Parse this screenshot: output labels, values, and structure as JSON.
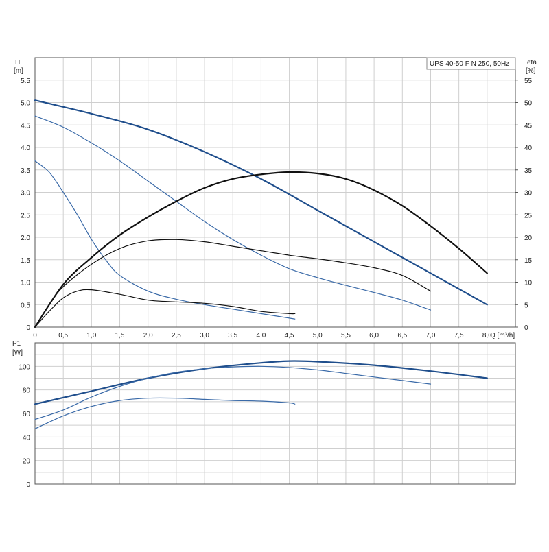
{
  "chart_data": [
    {
      "type": "line",
      "panel": "head-efficiency",
      "title": "UPS 40-50 F N 250, 50Hz",
      "ylabel": "H",
      "yunit": "[m]",
      "y2label": "eta",
      "y2unit": "[%]",
      "xlabel": "Q [m³/h]",
      "xlim": [
        0,
        8.5
      ],
      "ylim": [
        0,
        6.0
      ],
      "y2lim": [
        0,
        60
      ],
      "xticks": [
        "0",
        "0,5",
        "1,0",
        "1,5",
        "2,0",
        "2,5",
        "3,0",
        "3,5",
        "4,0",
        "4,5",
        "5,0",
        "5,5",
        "6,0",
        "6,5",
        "7,0",
        "7,5",
        "8,0"
      ],
      "yticks": [
        "0",
        "0.5",
        "1.0",
        "1.5",
        "2.0",
        "2.5",
        "3.0",
        "3.5",
        "4.0",
        "4.5",
        "5.0",
        "5.5"
      ],
      "y2ticks": [
        "0",
        "5",
        "10",
        "15",
        "20",
        "25",
        "30",
        "35",
        "40",
        "45",
        "50",
        "55"
      ],
      "grid": true,
      "head_series": [
        {
          "color": "#1f4e8c",
          "width": 2.2,
          "x": [
            0,
            1,
            2,
            3,
            4,
            5,
            6,
            7,
            8
          ],
          "y": [
            5.05,
            4.75,
            4.4,
            3.9,
            3.3,
            2.6,
            1.9,
            1.2,
            0.5
          ]
        },
        {
          "color": "#3a6aa8",
          "width": 1.2,
          "x": [
            0,
            0.5,
            1,
            1.5,
            2,
            2.5,
            3,
            3.5,
            4,
            4.5,
            5,
            5.5,
            6,
            6.5,
            7
          ],
          "y": [
            4.7,
            4.45,
            4.1,
            3.7,
            3.25,
            2.8,
            2.35,
            1.95,
            1.6,
            1.3,
            1.1,
            0.93,
            0.77,
            0.6,
            0.38
          ]
        },
        {
          "color": "#3a6aa8",
          "width": 1.2,
          "x": [
            0,
            0.25,
            0.5,
            0.75,
            1,
            1.25,
            1.5,
            2,
            2.5,
            3,
            3.5,
            4,
            4.5,
            4.6
          ],
          "y": [
            3.7,
            3.45,
            3.0,
            2.5,
            1.95,
            1.5,
            1.15,
            0.8,
            0.62,
            0.5,
            0.4,
            0.3,
            0.2,
            0.18
          ]
        }
      ],
      "efficiency_series": [
        {
          "color": "#111111",
          "width": 2.2,
          "x": [
            0,
            0.5,
            1,
            1.5,
            2,
            2.5,
            3,
            3.5,
            4,
            4.5,
            5,
            5.5,
            6,
            6.5,
            7,
            7.5,
            8
          ],
          "y": [
            0,
            9.5,
            15.5,
            20.5,
            24.5,
            28,
            31,
            33,
            34,
            34.5,
            34.2,
            33,
            30.5,
            27,
            22.5,
            17.5,
            12
          ]
        },
        {
          "color": "#111111",
          "width": 1.2,
          "x": [
            0,
            0.25,
            0.5,
            1,
            1.5,
            2,
            2.5,
            3,
            3.5,
            4,
            4.5,
            5,
            5.5,
            6,
            6.5,
            7
          ],
          "y": [
            0,
            5,
            9,
            14,
            17.5,
            19.2,
            19.5,
            19,
            18,
            17,
            16,
            15.2,
            14.3,
            13.2,
            11.5,
            8
          ]
        },
        {
          "color": "#111111",
          "width": 1.2,
          "x": [
            0,
            0.25,
            0.5,
            0.75,
            1,
            1.5,
            2,
            2.5,
            3,
            3.5,
            4,
            4.5,
            4.6
          ],
          "y": [
            0,
            3.5,
            6.5,
            8,
            8.3,
            7.3,
            6.0,
            5.6,
            5.3,
            4.6,
            3.5,
            3.0,
            3.0
          ]
        }
      ]
    },
    {
      "type": "line",
      "panel": "power",
      "ylabel": "P1",
      "yunit": "[W]",
      "xlim": [
        0,
        8.5
      ],
      "ylim": [
        0,
        120
      ],
      "yticks": [
        "0",
        "20",
        "40",
        "60",
        "80",
        "100"
      ],
      "grid": true,
      "series": [
        {
          "color": "#1f4e8c",
          "width": 2.2,
          "x": [
            0,
            1,
            2,
            3,
            4,
            4.5,
            5,
            6,
            7,
            8
          ],
          "y": [
            68,
            79,
            90,
            98,
            103,
            104.5,
            104,
            101,
            96,
            90
          ]
        },
        {
          "color": "#3a6aa8",
          "width": 1.2,
          "x": [
            0,
            0.5,
            1,
            1.5,
            2,
            2.5,
            3,
            3.5,
            4,
            4.5,
            5,
            5.5,
            6,
            6.5,
            7
          ],
          "y": [
            55,
            63,
            74,
            83,
            90,
            95,
            98,
            99.5,
            100,
            99,
            97,
            94,
            91,
            88,
            85
          ]
        },
        {
          "color": "#3a6aa8",
          "width": 1.2,
          "x": [
            0,
            0.5,
            1,
            1.5,
            2,
            2.5,
            3,
            3.5,
            4,
            4.5,
            4.6
          ],
          "y": [
            47,
            58,
            66,
            71,
            73,
            73,
            72,
            71,
            70.5,
            69,
            68
          ]
        }
      ]
    }
  ]
}
